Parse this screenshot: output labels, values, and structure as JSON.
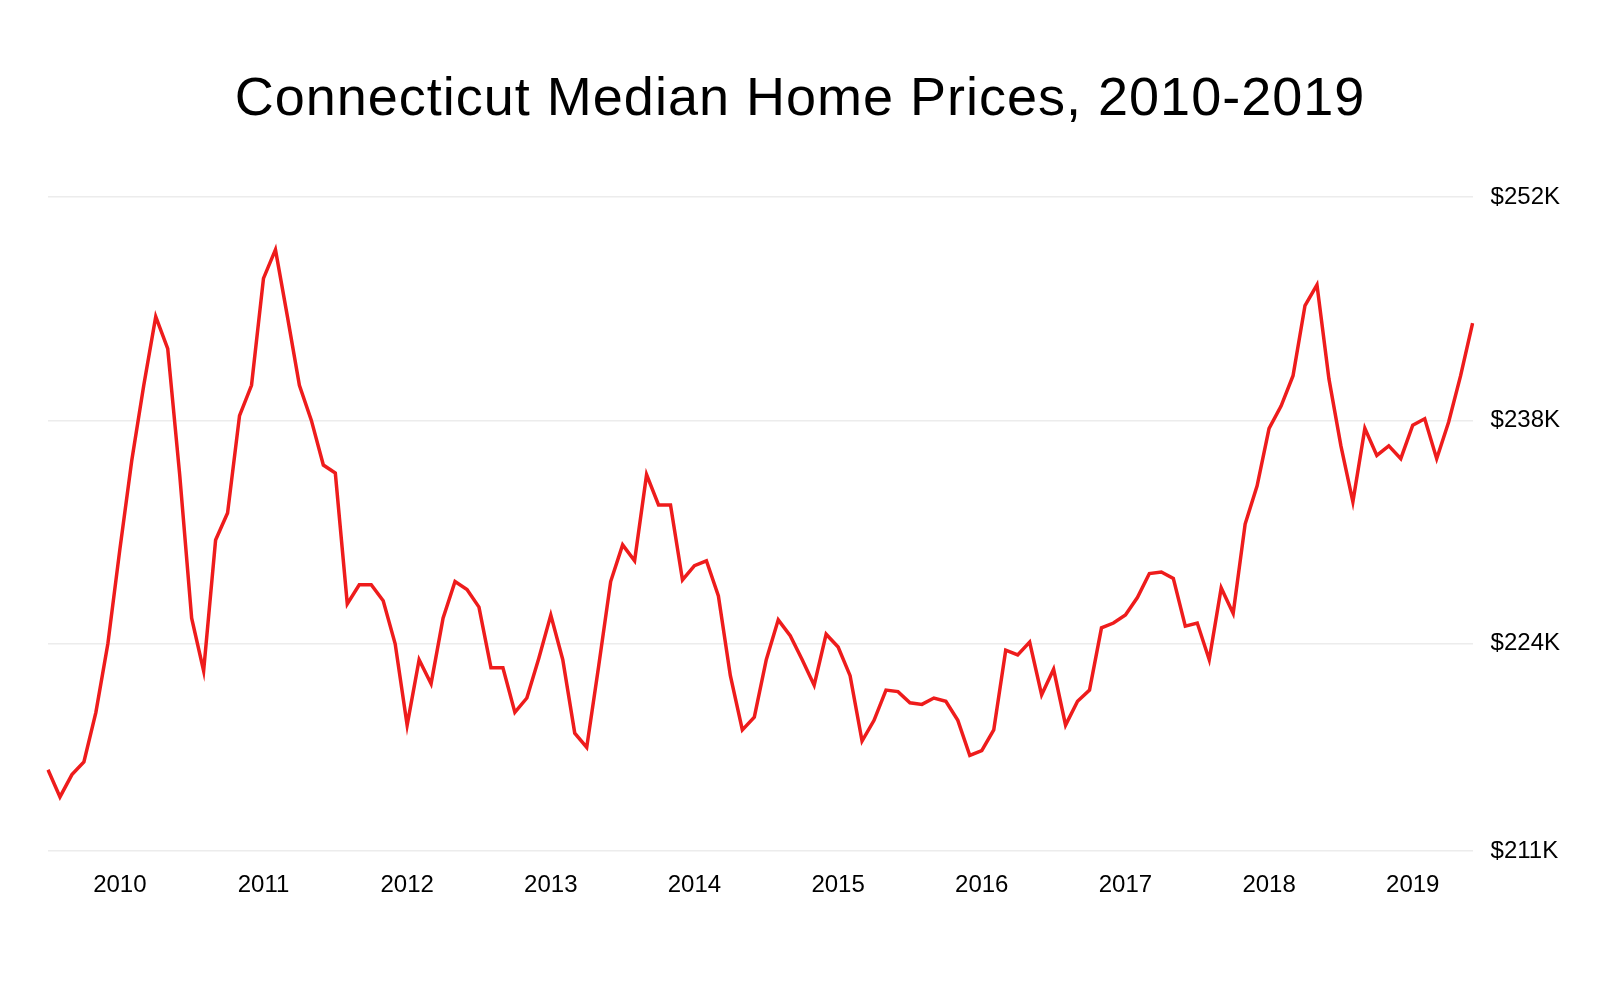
{
  "chart_data": {
    "type": "line",
    "title": "Connecticut Median Home Prices, 2010-2019",
    "categories": [
      null,
      null,
      null,
      null,
      null,
      null,
      "2010",
      null,
      null,
      null,
      null,
      null,
      null,
      null,
      null,
      null,
      null,
      null,
      "2011",
      null,
      null,
      null,
      null,
      null,
      null,
      null,
      null,
      null,
      null,
      null,
      "2012",
      null,
      null,
      null,
      null,
      null,
      null,
      null,
      null,
      null,
      null,
      null,
      "2013",
      null,
      null,
      null,
      null,
      null,
      null,
      null,
      null,
      null,
      null,
      null,
      "2014",
      null,
      null,
      null,
      null,
      null,
      null,
      null,
      null,
      null,
      null,
      null,
      "2015",
      null,
      null,
      null,
      null,
      null,
      null,
      null,
      null,
      null,
      null,
      null,
      "2016",
      null,
      null,
      null,
      null,
      null,
      null,
      null,
      null,
      null,
      null,
      null,
      "2017",
      null,
      null,
      null,
      null,
      null,
      null,
      null,
      null,
      null,
      null,
      null,
      "2018",
      null,
      null,
      null,
      null,
      null,
      null,
      null,
      null,
      null,
      null,
      null,
      "2019",
      null,
      null,
      null,
      null,
      null
    ],
    "values": [
      216.1,
      214.4,
      215.8,
      216.6,
      219.7,
      224.0,
      229.9,
      235.5,
      240.2,
      244.5,
      242.5,
      234.6,
      225.6,
      222.3,
      230.5,
      232.2,
      238.3,
      240.2,
      246.9,
      248.7,
      244.5,
      240.2,
      238.0,
      235.2,
      234.7,
      226.5,
      227.7,
      227.7,
      226.7,
      224.0,
      218.9,
      223.0,
      221.5,
      225.6,
      227.9,
      227.4,
      226.3,
      222.5,
      222.5,
      219.7,
      220.6,
      223.1,
      225.8,
      223.0,
      218.4,
      217.5,
      222.6,
      227.9,
      230.2,
      229.2,
      234.6,
      232.7,
      232.7,
      228.0,
      228.9,
      229.2,
      227.0,
      222.0,
      218.6,
      219.4,
      223.0,
      225.5,
      224.5,
      223.0,
      221.4,
      224.6,
      223.8,
      222.0,
      217.9,
      219.2,
      221.1,
      221.0,
      220.3,
      220.2,
      220.6,
      220.4,
      219.2,
      217.0,
      217.3,
      218.6,
      223.6,
      223.3,
      224.1,
      220.8,
      222.4,
      218.9,
      220.4,
      221.1,
      225.0,
      225.3,
      225.8,
      226.9,
      228.4,
      228.5,
      228.1,
      225.1,
      225.3,
      223.0,
      227.5,
      225.9,
      231.5,
      233.9,
      237.5,
      238.9,
      240.8,
      245.2,
      246.5,
      240.6,
      236.4,
      232.9,
      237.5,
      235.8,
      236.4,
      235.6,
      237.7,
      238.1,
      235.6,
      237.9,
      240.8,
      244.1
    ],
    "color": "#ee1c1c",
    "ylim": [
      211,
      252
    ],
    "yticks": [
      {
        "value": 211,
        "label": "$211K"
      },
      {
        "value": 224,
        "label": "$224K"
      },
      {
        "value": 238,
        "label": "$238K"
      },
      {
        "value": 252,
        "label": "$252K"
      }
    ],
    "grid": true
  }
}
